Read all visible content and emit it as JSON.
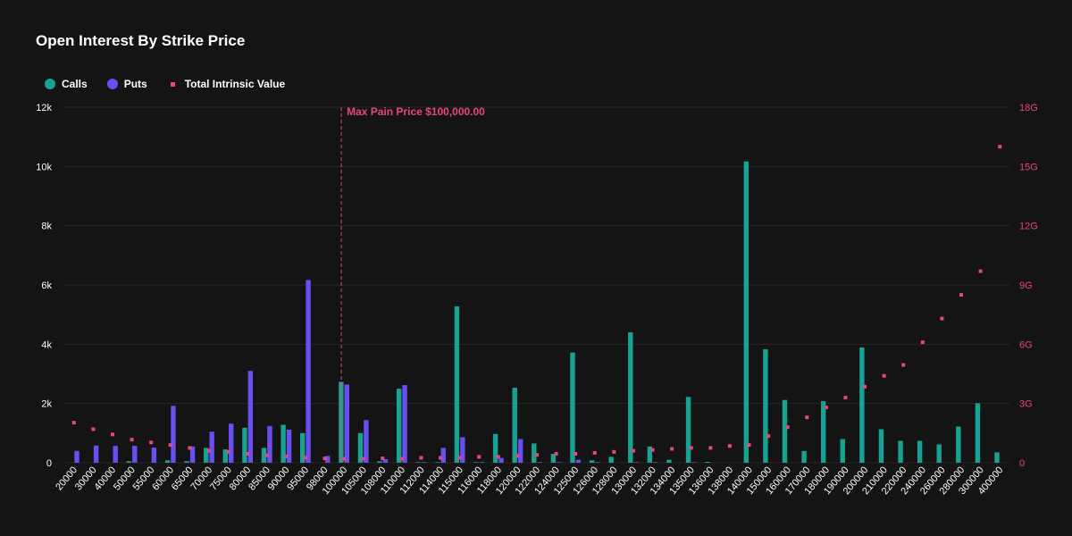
{
  "colors": {
    "calls": "#16a394",
    "puts": "#6a4ff0",
    "intrinsic": "#e8467c",
    "maxpain": "#e8467c",
    "grid": "#262626",
    "tick_left": "#ffffff",
    "tick_right": "#e8467c"
  },
  "chart_data": {
    "type": "bar",
    "title": "Open Interest By Strike Price",
    "legend": {
      "placement": "top-left",
      "calls": "Calls",
      "puts": "Puts",
      "intrinsic": "Total Intrinsic Value"
    },
    "max_pain_label": "Max Pain Price $100,000.00",
    "max_pain_strike": "100000",
    "categories": [
      "20000",
      "30000",
      "40000",
      "50000",
      "55000",
      "60000",
      "65000",
      "70000",
      "75000",
      "80000",
      "85000",
      "90000",
      "95000",
      "98000",
      "100000",
      "105000",
      "108000",
      "110000",
      "112000",
      "114000",
      "115000",
      "116000",
      "118000",
      "120000",
      "122000",
      "124000",
      "125000",
      "126000",
      "128000",
      "130000",
      "132000",
      "134000",
      "135000",
      "136000",
      "138000",
      "140000",
      "150000",
      "160000",
      "170000",
      "180000",
      "190000",
      "200000",
      "210000",
      "220000",
      "240000",
      "260000",
      "280000",
      "300000",
      "400000"
    ],
    "y_left": {
      "min": 0,
      "max": 12000,
      "ticks": [
        0,
        2000,
        4000,
        6000,
        8000,
        10000,
        12000
      ],
      "tick_labels": [
        "0",
        "2k",
        "4k",
        "6k",
        "8k",
        "10k",
        "12k"
      ]
    },
    "y_right": {
      "min": 0,
      "max": 18,
      "ticks": [
        0,
        3,
        6,
        9,
        12,
        15,
        18
      ],
      "tick_labels": [
        "0",
        "3G",
        "6G",
        "9G",
        "12G",
        "15G",
        "18G"
      ]
    },
    "grid": true,
    "series": [
      {
        "name": "Calls",
        "axis": "left",
        "kind": "bar",
        "values": [
          0,
          0,
          0,
          50,
          0,
          80,
          50,
          500,
          450,
          1180,
          500,
          1280,
          1000,
          0,
          2730,
          1000,
          50,
          2500,
          20,
          20,
          5280,
          20,
          970,
          2530,
          650,
          300,
          3720,
          80,
          200,
          4400,
          550,
          100,
          2220,
          30,
          0,
          10170,
          3830,
          2120,
          400,
          2080,
          800,
          3890,
          1130,
          740,
          740,
          620,
          1220,
          2010,
          350
        ]
      },
      {
        "name": "Puts",
        "axis": "left",
        "kind": "bar",
        "values": [
          400,
          580,
          570,
          570,
          510,
          1920,
          550,
          1050,
          1320,
          3100,
          1240,
          1120,
          6170,
          230,
          2640,
          1440,
          120,
          2620,
          20,
          500,
          860,
          20,
          160,
          800,
          20,
          20,
          100,
          20,
          0,
          20,
          20,
          0,
          20,
          0,
          0,
          0,
          0,
          0,
          0,
          0,
          0,
          0,
          0,
          0,
          0,
          0,
          0,
          0,
          0
        ]
      },
      {
        "name": "Total Intrinsic Value",
        "axis": "right",
        "kind": "scatter",
        "unit": "G",
        "values": [
          2.03,
          1.7,
          1.43,
          1.17,
          1.03,
          0.9,
          0.75,
          0.6,
          0.55,
          0.45,
          0.38,
          0.32,
          0.25,
          0.22,
          0.2,
          0.2,
          0.22,
          0.2,
          0.25,
          0.25,
          0.25,
          0.3,
          0.3,
          0.35,
          0.4,
          0.45,
          0.45,
          0.5,
          0.55,
          0.6,
          0.65,
          0.7,
          0.75,
          0.75,
          0.85,
          0.9,
          1.35,
          1.8,
          2.3,
          2.8,
          3.3,
          3.85,
          4.4,
          4.95,
          6.1,
          7.3,
          8.5,
          9.7,
          16.0
        ]
      }
    ]
  }
}
